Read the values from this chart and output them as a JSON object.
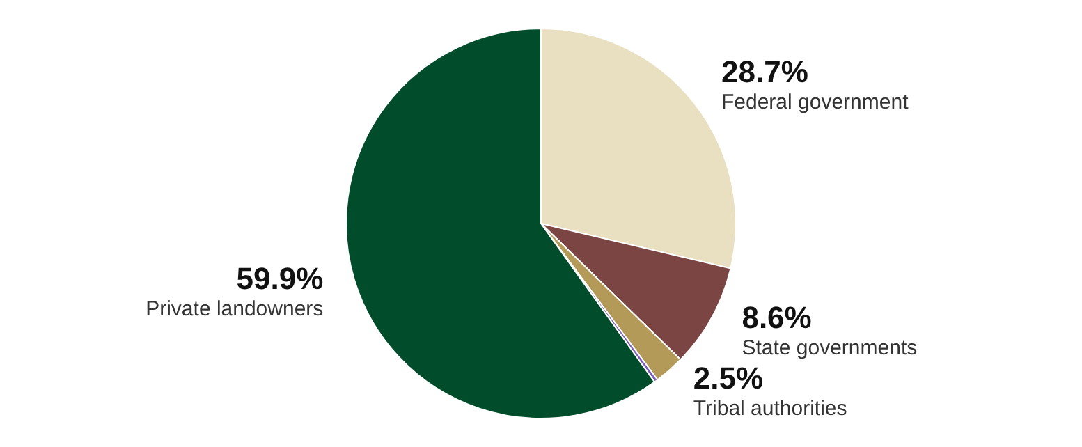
{
  "chart_data": {
    "type": "pie",
    "categories": [
      "Federal government",
      "State governments",
      "Tribal authorities",
      null,
      "Private landowners"
    ],
    "values": [
      28.7,
      8.6,
      2.5,
      0.3,
      59.9
    ],
    "colors": [
      "#e9dfc1",
      "#7a4542",
      "#b39a58",
      "#7b5cc0",
      "#004c2b"
    ],
    "value_labels": [
      "28.7%",
      "8.6%",
      "2.5%",
      null,
      "59.9%"
    ]
  }
}
